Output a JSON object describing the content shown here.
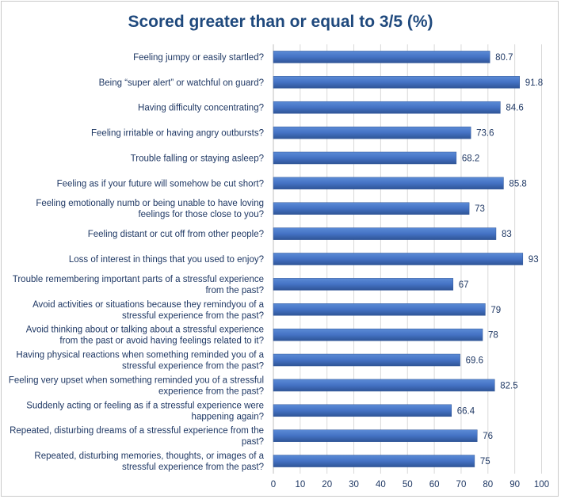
{
  "chart_data": {
    "type": "bar",
    "orientation": "horizontal",
    "title": "Scored greater than or equal to 3/5 (%)",
    "xlabel": "",
    "ylabel": "",
    "xlim": [
      0,
      100
    ],
    "xticks": [
      0,
      10,
      20,
      30,
      40,
      50,
      60,
      70,
      80,
      90,
      100
    ],
    "grid": true,
    "bar_color": "#4472c4",
    "categories": [
      [
        "Feeling jumpy or easily startled?"
      ],
      [
        "Being “super alert” or watchful on guard?"
      ],
      [
        "Having difficulty concentrating?"
      ],
      [
        "Feeling irritable or having angry outbursts?"
      ],
      [
        "Trouble falling or staying asleep?"
      ],
      [
        "Feeling as if your future will somehow be cut short?"
      ],
      [
        "Feeling emotionally numb or being unable to have loving",
        "feelings for those close to you?"
      ],
      [
        "Feeling distant or cut off from other people?"
      ],
      [
        "Loss of interest in things that you used to enjoy?"
      ],
      [
        "Trouble remembering important parts of a stressful experience",
        "from the past?"
      ],
      [
        "Avoid activities or situations because they remindyou of a",
        "stressful experience from the past?"
      ],
      [
        "Avoid thinking about or talking about a stressful experience",
        "from the past or avoid having feelings related to it?"
      ],
      [
        "Having physical reactions when something reminded you of a",
        "stressful experience from the past?"
      ],
      [
        "Feeling very upset when something reminded you of a stressful",
        "experience from the past?"
      ],
      [
        "Suddenly acting or feeling as if a stressful experience were",
        "happening again?"
      ],
      [
        "Repeated, disturbing dreams of a stressful experience from the",
        "past?"
      ],
      [
        "Repeated, disturbing memories, thoughts, or images of a",
        "stressful experience from the past?"
      ]
    ],
    "values": [
      80.7,
      91.8,
      84.6,
      73.6,
      68.2,
      85.8,
      73,
      83,
      93,
      67,
      79,
      78,
      69.6,
      82.5,
      66.4,
      76,
      75
    ],
    "value_labels": [
      "80.7",
      "91.8",
      "84.6",
      "73.6",
      "68.2",
      "85.8",
      "73",
      "83",
      "93",
      "67",
      "79",
      "78",
      "69.6",
      "82.5",
      "66.4",
      "76",
      "75"
    ]
  }
}
